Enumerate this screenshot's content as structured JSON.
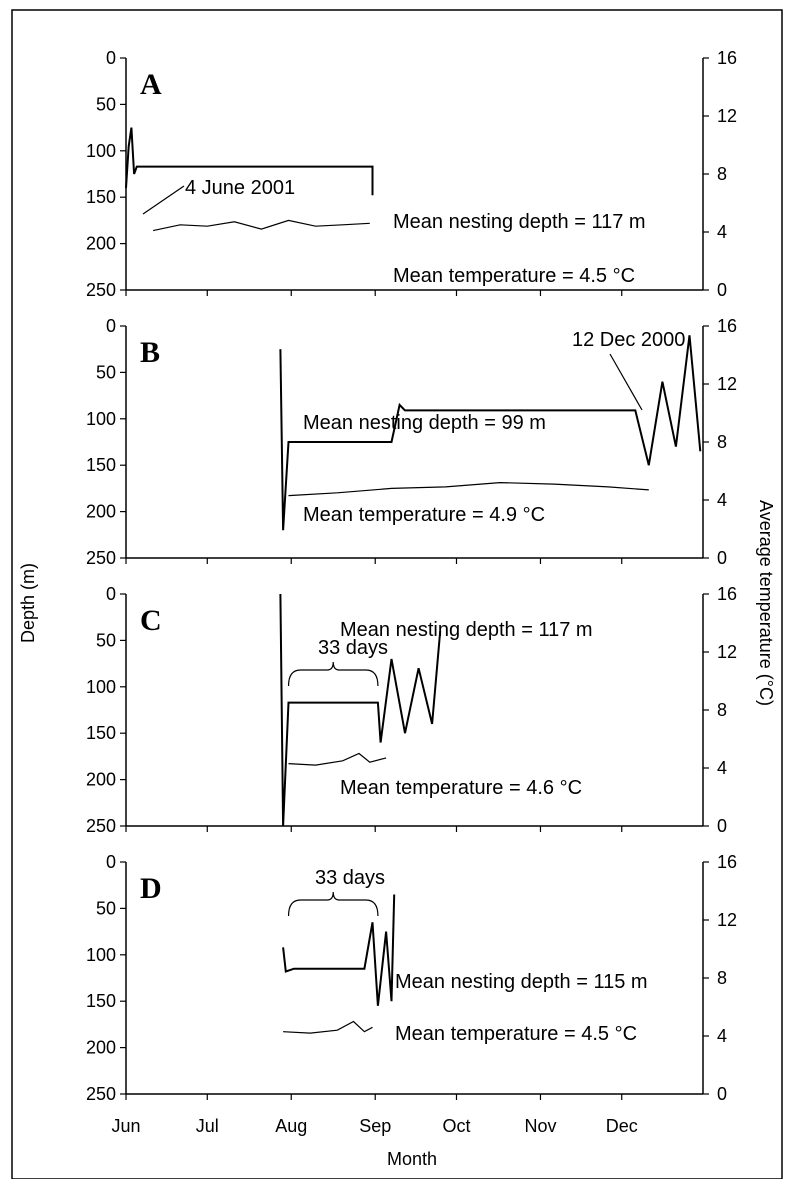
{
  "figure": {
    "y_left_label": "Depth (m)",
    "y_right_label": "Average temperature (°C)",
    "x_label": "Month",
    "months": [
      "Jun",
      "Jul",
      "Aug",
      "Sep",
      "Oct",
      "Nov",
      "Dec"
    ],
    "depth_ticks": [
      "0",
      "50",
      "100",
      "150",
      "200",
      "250"
    ],
    "temp_ticks": [
      "0",
      "4",
      "8",
      "12",
      "16"
    ]
  },
  "chart_data": [
    {
      "type": "line",
      "panel": "A",
      "x_unit": "day of year (Jun 1 = 152)",
      "xlim": [
        152,
        365
      ],
      "ylim_left": [
        250,
        0
      ],
      "ylim_right": [
        0,
        16
      ],
      "annotations": {
        "date": "4 June 2001",
        "depth": "Mean nesting depth = 117 m",
        "temp": "Mean temperature =  4.5 °C"
      },
      "series": [
        {
          "values_axis": "left",
          "x": [
            152,
            153,
            154,
            155,
            156,
            157,
            160,
            180,
            200,
            220,
            235,
            243,
            243
          ],
          "y": [
            140,
            95,
            75,
            125,
            117,
            117,
            117,
            117,
            117,
            117,
            117,
            117,
            148
          ]
        },
        {
          "values_axis": "right",
          "x": [
            162,
            172,
            182,
            192,
            202,
            212,
            222,
            232,
            242
          ],
          "y": [
            4.1,
            4.5,
            4.4,
            4.7,
            4.2,
            4.8,
            4.4,
            4.5,
            4.6
          ]
        }
      ]
    },
    {
      "type": "line",
      "panel": "B",
      "x_unit": "day of year (Jun 1 = 152)",
      "xlim": [
        152,
        365
      ],
      "ylim_left": [
        250,
        0
      ],
      "ylim_right": [
        0,
        16
      ],
      "annotations": {
        "date": "12 Dec 2000",
        "depth": "Mean nesting depth = 99 m",
        "temp": "Mean temperature = 4.9 °C"
      },
      "series": [
        {
          "values_axis": "left",
          "x": [
            209,
            210,
            212,
            230,
            250,
            253,
            255,
            290,
            320,
            340,
            345,
            350,
            355,
            360,
            364
          ],
          "y": [
            25,
            220,
            125,
            125,
            125,
            85,
            91,
            91,
            91,
            91,
            150,
            60,
            130,
            10,
            135
          ]
        },
        {
          "values_axis": "right",
          "x": [
            212,
            230,
            250,
            270,
            290,
            310,
            330,
            345
          ],
          "y": [
            4.3,
            4.5,
            4.8,
            4.9,
            5.2,
            5.1,
            4.9,
            4.7
          ]
        }
      ]
    },
    {
      "type": "line",
      "panel": "C",
      "x_unit": "day of year (Jun 1 = 152)",
      "xlim": [
        152,
        365
      ],
      "ylim_left": [
        250,
        0
      ],
      "ylim_right": [
        0,
        16
      ],
      "annotations": {
        "interval": "33 days",
        "depth": "Mean nesting depth = 117 m",
        "temp": "Mean temperature = 4.6 °C"
      },
      "series": [
        {
          "values_axis": "left",
          "x": [
            209,
            210,
            212,
            225,
            245,
            246,
            250,
            255,
            260,
            265,
            268
          ],
          "y": [
            0,
            250,
            117,
            117,
            117,
            160,
            70,
            150,
            80,
            140,
            40
          ]
        },
        {
          "values_axis": "right",
          "x": [
            212,
            222,
            232,
            238,
            242,
            248
          ],
          "y": [
            4.3,
            4.2,
            4.5,
            5.0,
            4.4,
            4.7
          ]
        }
      ]
    },
    {
      "type": "line",
      "panel": "D",
      "x_unit": "day of year (Jun 1 = 152)",
      "xlim": [
        152,
        365
      ],
      "ylim_left": [
        250,
        0
      ],
      "ylim_right": [
        0,
        16
      ],
      "annotations": {
        "interval": "33 days",
        "depth": "Mean nesting depth = 115 m",
        "temp": "Mean temperature = 4.5 °C"
      },
      "series": [
        {
          "values_axis": "left",
          "x": [
            210,
            211,
            214,
            230,
            240,
            243,
            245,
            248,
            250,
            251
          ],
          "y": [
            92,
            118,
            115,
            115,
            115,
            65,
            155,
            75,
            150,
            35
          ]
        },
        {
          "values_axis": "right",
          "x": [
            210,
            220,
            230,
            236,
            240,
            243
          ],
          "y": [
            4.3,
            4.2,
            4.4,
            5.0,
            4.3,
            4.6
          ]
        }
      ]
    }
  ]
}
